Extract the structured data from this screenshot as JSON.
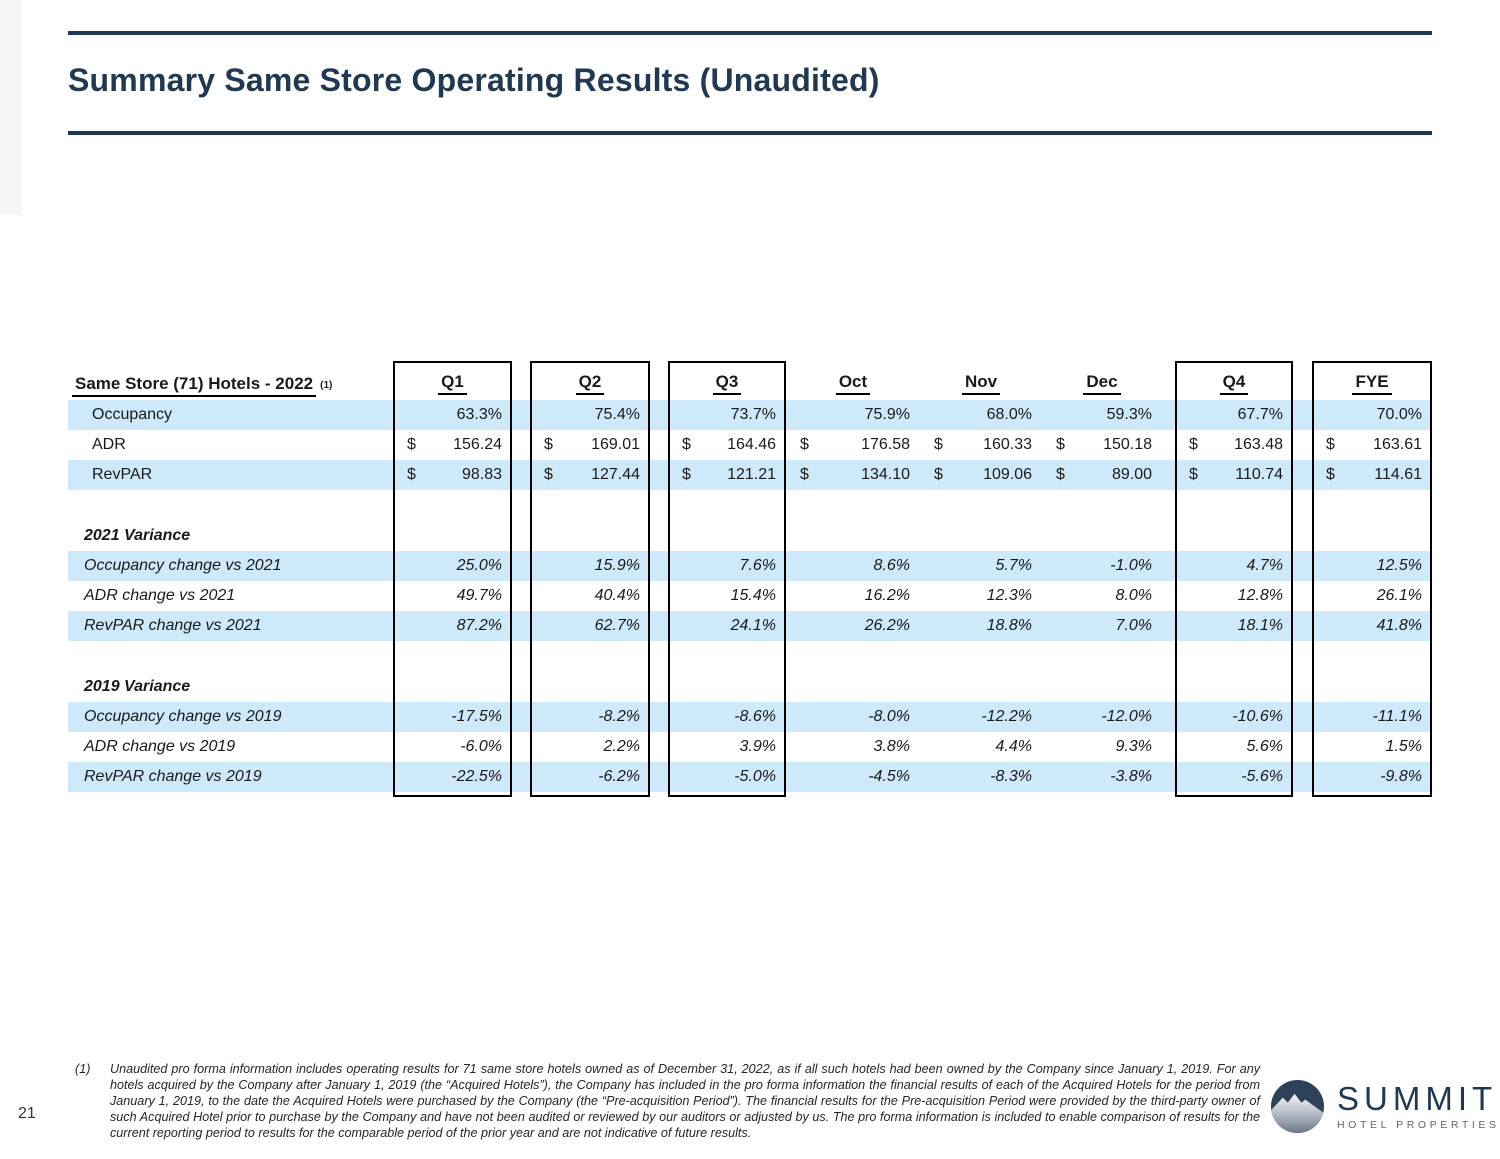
{
  "title": "Summary Same Store Operating Results (Unaudited)",
  "page_number": "21",
  "colors": {
    "accent_navy": "#203852",
    "band_blue": "#cde9fa",
    "border_black": "#000000"
  },
  "table": {
    "title": "Same Store (71) Hotels - 2022",
    "title_superscript": "(1)",
    "columns": [
      {
        "id": "q1",
        "label": "Q1",
        "boxed": true
      },
      {
        "id": "q2",
        "label": "Q2",
        "boxed": true
      },
      {
        "id": "q3",
        "label": "Q3",
        "boxed": true
      },
      {
        "id": "oct",
        "label": "Oct",
        "boxed": false
      },
      {
        "id": "nov",
        "label": "Nov",
        "boxed": false
      },
      {
        "id": "dec",
        "label": "Dec",
        "boxed": false
      },
      {
        "id": "q4",
        "label": "Q4",
        "boxed": true
      },
      {
        "id": "fye",
        "label": "FYE",
        "boxed": true
      }
    ],
    "rows": [
      {
        "type": "metric",
        "label": "Occupancy",
        "indent": 24,
        "italic": false,
        "band": true,
        "dollar": false,
        "values": [
          "63.3%",
          "75.4%",
          "73.7%",
          "75.9%",
          "68.0%",
          "59.3%",
          "67.7%",
          "70.0%"
        ]
      },
      {
        "type": "metric",
        "label": "ADR",
        "indent": 24,
        "italic": false,
        "band": false,
        "dollar": true,
        "values": [
          "156.24",
          "169.01",
          "164.46",
          "176.58",
          "160.33",
          "150.18",
          "163.48",
          "163.61"
        ]
      },
      {
        "type": "metric",
        "label": "RevPAR",
        "indent": 24,
        "italic": false,
        "band": true,
        "dollar": true,
        "values": [
          "98.83",
          "127.44",
          "121.21",
          "134.10",
          "109.06",
          "89.00",
          "110.74",
          "114.61"
        ]
      },
      {
        "type": "spacer"
      },
      {
        "type": "section",
        "label": "2021 Variance",
        "indent": 16
      },
      {
        "type": "variance",
        "label": "Occupancy change vs 2021",
        "indent": 16,
        "italic": true,
        "band": true,
        "dollar": false,
        "values": [
          "25.0%",
          "15.9%",
          "7.6%",
          "8.6%",
          "5.7%",
          "-1.0%",
          "4.7%",
          "12.5%"
        ]
      },
      {
        "type": "variance",
        "label": "ADR change vs 2021",
        "indent": 16,
        "italic": true,
        "band": false,
        "dollar": false,
        "values": [
          "49.7%",
          "40.4%",
          "15.4%",
          "16.2%",
          "12.3%",
          "8.0%",
          "12.8%",
          "26.1%"
        ]
      },
      {
        "type": "variance",
        "label": "RevPAR change vs 2021",
        "indent": 16,
        "italic": true,
        "band": true,
        "dollar": false,
        "values": [
          "87.2%",
          "62.7%",
          "24.1%",
          "26.2%",
          "18.8%",
          "7.0%",
          "18.1%",
          "41.8%"
        ]
      },
      {
        "type": "spacer"
      },
      {
        "type": "section",
        "label": "2019 Variance",
        "indent": 16
      },
      {
        "type": "variance",
        "label": "Occupancy change vs 2019",
        "indent": 16,
        "italic": true,
        "band": true,
        "dollar": false,
        "values": [
          "-17.5%",
          "-8.2%",
          "-8.6%",
          "-8.0%",
          "-12.2%",
          "-12.0%",
          "-10.6%",
          "-11.1%"
        ]
      },
      {
        "type": "variance",
        "label": "ADR change vs 2019",
        "indent": 16,
        "italic": true,
        "band": false,
        "dollar": false,
        "values": [
          "-6.0%",
          "2.2%",
          "3.9%",
          "3.8%",
          "4.4%",
          "9.3%",
          "5.6%",
          "1.5%"
        ]
      },
      {
        "type": "variance",
        "label": "RevPAR change vs 2019",
        "indent": 16,
        "italic": true,
        "band": true,
        "dollar": false,
        "values": [
          "-22.5%",
          "-6.2%",
          "-5.0%",
          "-4.5%",
          "-8.3%",
          "-3.8%",
          "-5.6%",
          "-9.8%"
        ]
      }
    ]
  },
  "footnote": {
    "marker": "(1)",
    "text": "Unaudited pro forma information includes operating results for 71 same store hotels owned as of December 31, 2022, as if all such hotels had been owned by the Company since January 1, 2019. For any hotels acquired by the Company after January 1, 2019 (the “Acquired Hotels”), the Company has included in the pro forma information the financial results of each of the Acquired Hotels for the period from January 1, 2019, to the date the Acquired Hotels were purchased by the Company (the “Pre-acquisition Period”). The financial results for the Pre-acquisition Period were provided by the third-party owner of such Acquired Hotel prior to purchase by the Company and have not been audited or reviewed by our auditors or adjusted by us. The pro forma information is included to enable comparison of results for the current reporting period to results for the comparable period of the prior year and are not indicative of future results."
  },
  "logo": {
    "name": "SUMMIT",
    "subtitle": "HOTEL PROPERTIES",
    "icon": "mountain-circle-icon"
  }
}
